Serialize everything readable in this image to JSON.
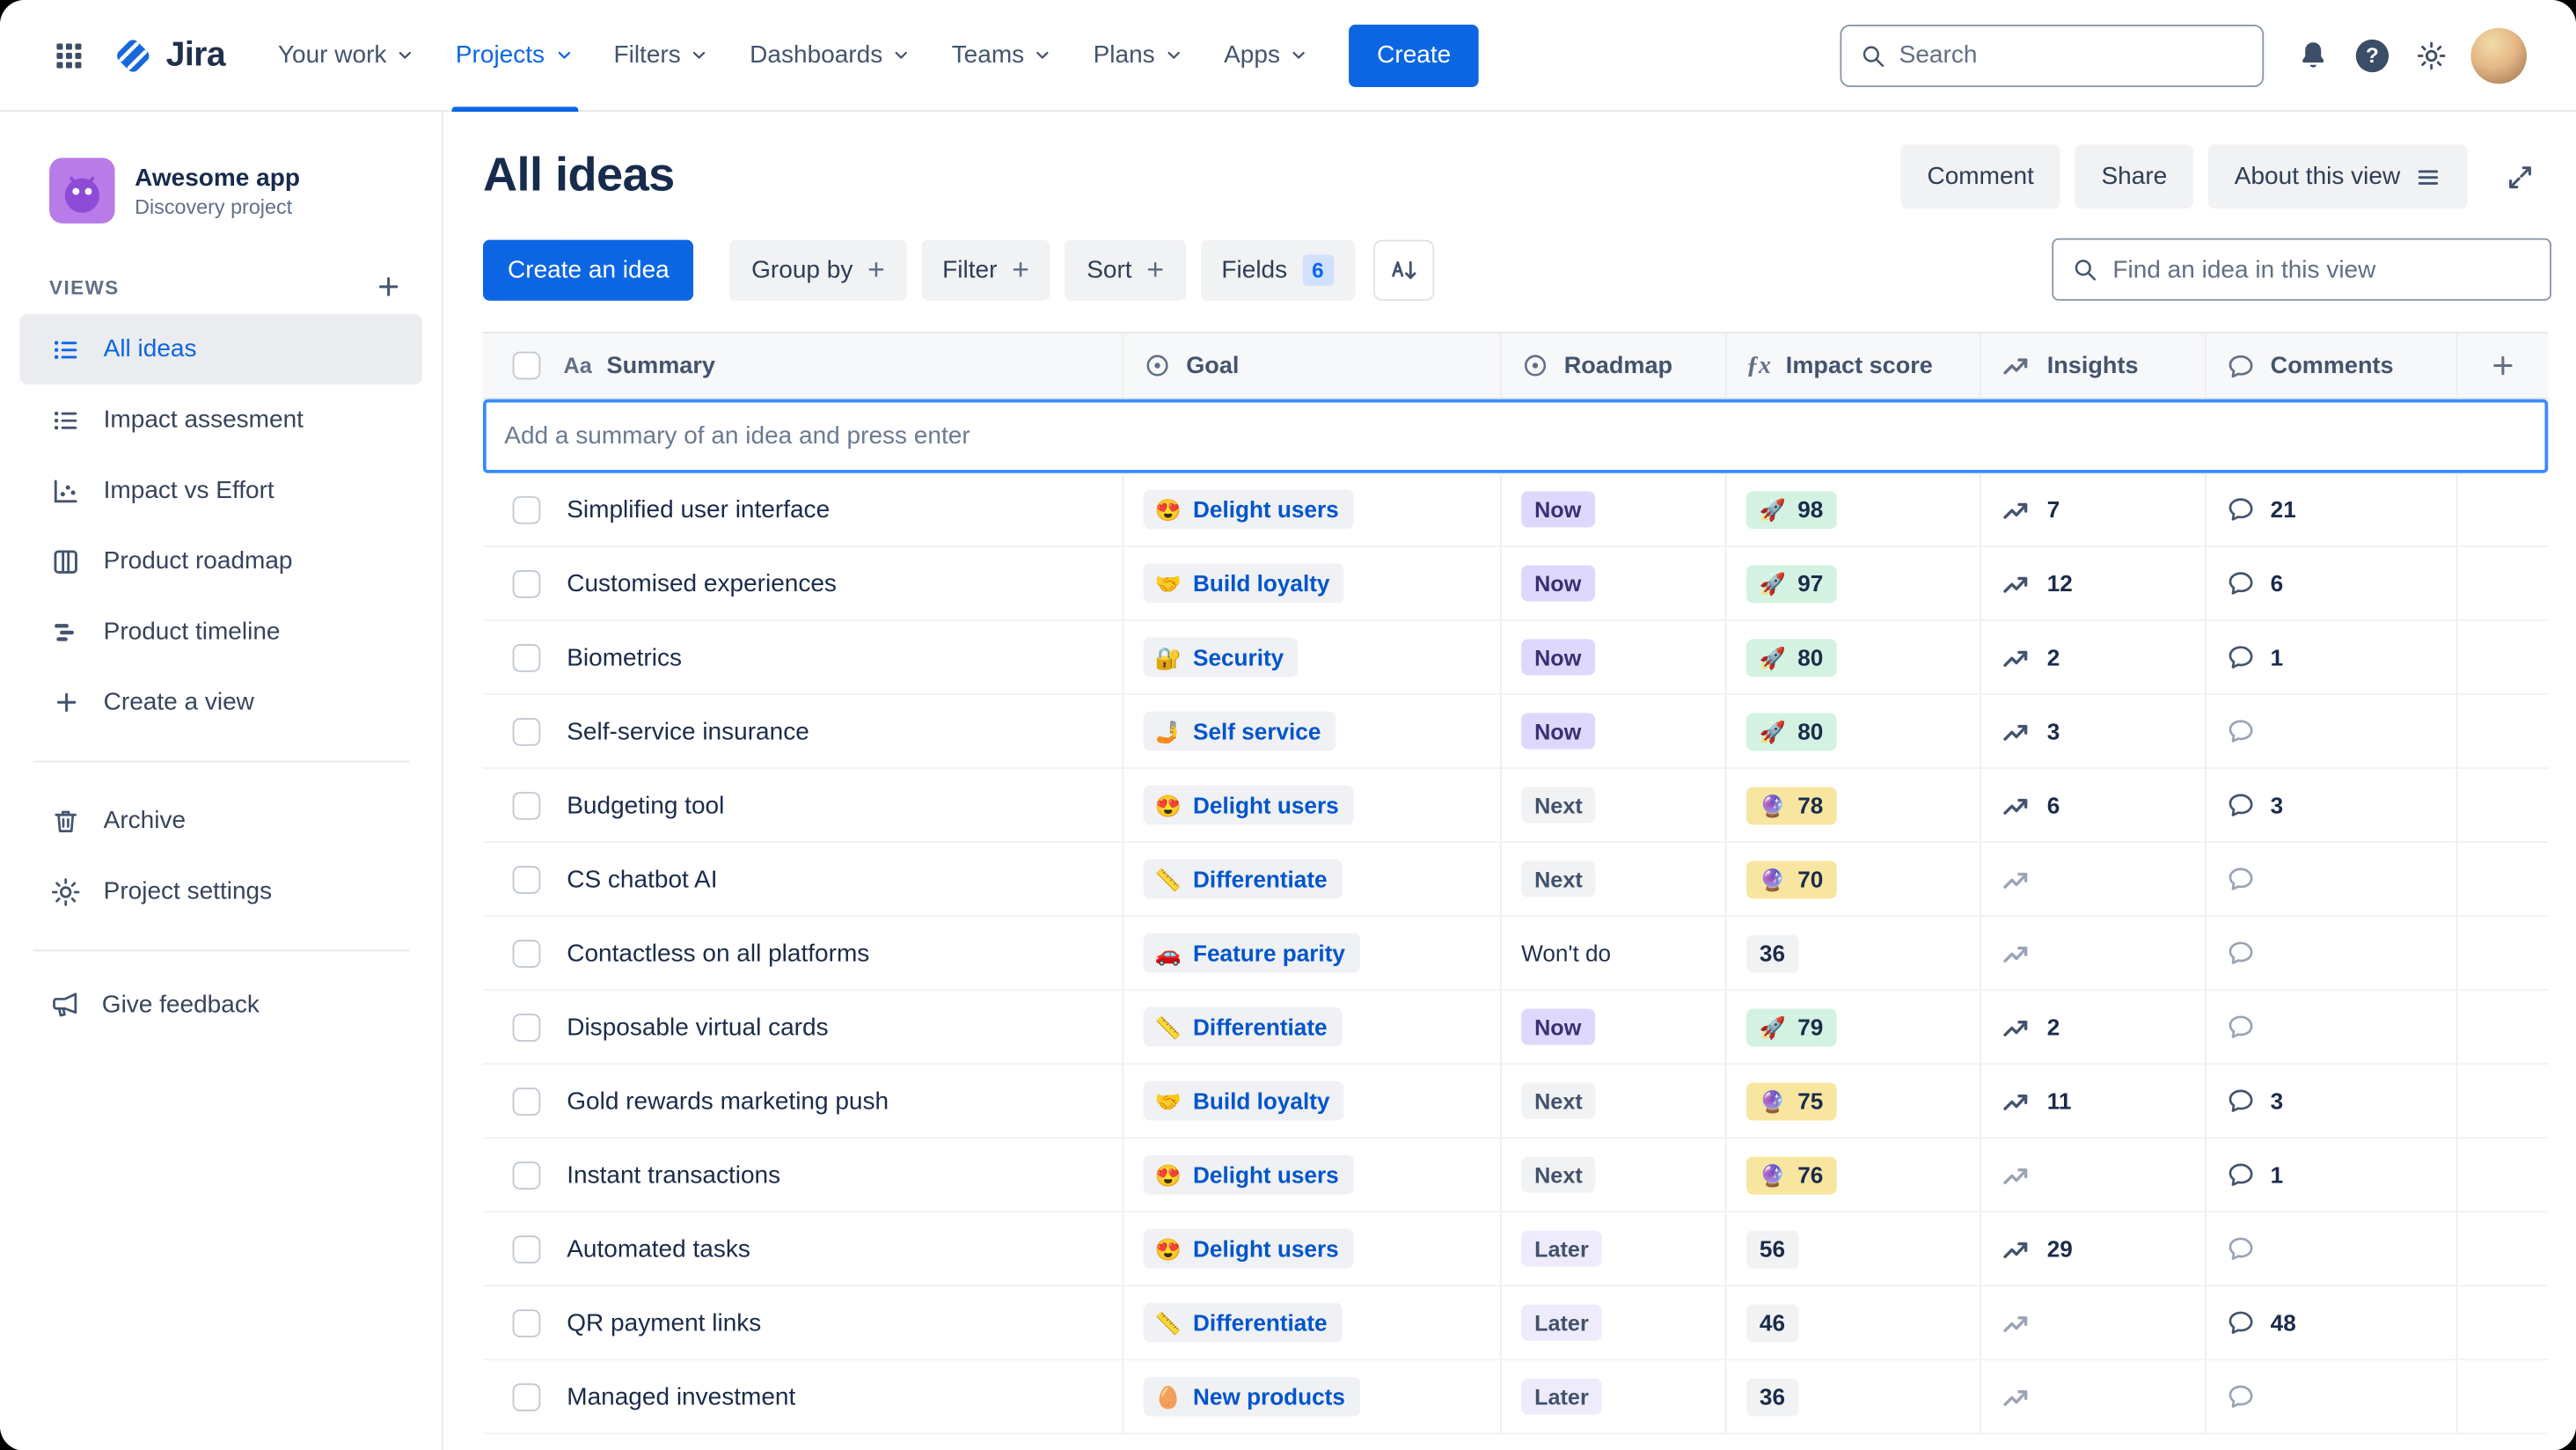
{
  "topnav": {
    "brand": "Jira",
    "items": [
      {
        "label": "Your work"
      },
      {
        "label": "Projects",
        "active": true
      },
      {
        "label": "Filters"
      },
      {
        "label": "Dashboards"
      },
      {
        "label": "Teams"
      },
      {
        "label": "Plans"
      },
      {
        "label": "Apps"
      }
    ],
    "create_button": "Create",
    "search_placeholder": "Search"
  },
  "sidebar": {
    "project": {
      "name": "Awesome app",
      "type": "Discovery project"
    },
    "views_heading": "VIEWS",
    "views": [
      {
        "label": "All ideas",
        "icon": "list-icon",
        "active": true
      },
      {
        "label": "Impact assesment",
        "icon": "list-icon"
      },
      {
        "label": "Impact vs Effort",
        "icon": "scatter-icon"
      },
      {
        "label": "Product roadmap",
        "icon": "board-icon"
      },
      {
        "label": "Product timeline",
        "icon": "timeline-icon"
      },
      {
        "label": "Create a view",
        "icon": "plus-icon"
      }
    ],
    "tools": [
      {
        "label": "Archive",
        "icon": "archive-icon"
      },
      {
        "label": "Project settings",
        "icon": "gear-icon"
      }
    ],
    "feedback_label": "Give feedback"
  },
  "view": {
    "title": "All ideas",
    "actions": {
      "comment": "Comment",
      "share": "Share",
      "about": "About this view"
    },
    "toolbar": {
      "create_idea": "Create an idea",
      "group_by": "Group by",
      "filter": "Filter",
      "sort": "Sort",
      "fields": "Fields",
      "fields_count": "6",
      "find_placeholder": "Find an idea in this view"
    }
  },
  "table": {
    "add_placeholder": "Add a summary of an idea and press enter",
    "columns": [
      {
        "label": "Summary",
        "icon": "text-icon"
      },
      {
        "label": "Goal",
        "icon": "target-icon"
      },
      {
        "label": "Roadmap",
        "icon": "target-icon"
      },
      {
        "label": "Impact score",
        "icon": "formula-icon"
      },
      {
        "label": "Insights",
        "icon": "trend-icon"
      },
      {
        "label": "Comments",
        "icon": "comment-icon"
      }
    ],
    "rows": [
      {
        "summary": "Simplified user interface",
        "goal": {
          "emoji": "😍",
          "label": "Delight users"
        },
        "roadmap": {
          "label": "Now",
          "tone": "purple"
        },
        "impact": {
          "emoji": "🚀",
          "value": "98",
          "tone": "green"
        },
        "insights": "7",
        "comments": "21"
      },
      {
        "summary": "Customised experiences",
        "goal": {
          "emoji": "🤝",
          "label": "Build loyalty"
        },
        "roadmap": {
          "label": "Now",
          "tone": "purple"
        },
        "impact": {
          "emoji": "🚀",
          "value": "97",
          "tone": "green"
        },
        "insights": "12",
        "comments": "6"
      },
      {
        "summary": "Biometrics",
        "goal": {
          "emoji": "🔐",
          "label": "Security"
        },
        "roadmap": {
          "label": "Now",
          "tone": "purple"
        },
        "impact": {
          "emoji": "🚀",
          "value": "80",
          "tone": "green"
        },
        "insights": "2",
        "comments": "1"
      },
      {
        "summary": "Self-service insurance",
        "goal": {
          "emoji": "🤳",
          "label": "Self service"
        },
        "roadmap": {
          "label": "Now",
          "tone": "purple"
        },
        "impact": {
          "emoji": "🚀",
          "value": "80",
          "tone": "green"
        },
        "insights": "3",
        "comments": ""
      },
      {
        "summary": "Budgeting tool",
        "goal": {
          "emoji": "😍",
          "label": "Delight users"
        },
        "roadmap": {
          "label": "Next",
          "tone": "gray"
        },
        "impact": {
          "emoji": "🔮",
          "value": "78",
          "tone": "yellow"
        },
        "insights": "6",
        "comments": "3"
      },
      {
        "summary": "CS chatbot AI",
        "goal": {
          "emoji": "📏",
          "label": "Differentiate"
        },
        "roadmap": {
          "label": "Next",
          "tone": "gray"
        },
        "impact": {
          "emoji": "🔮",
          "value": "70",
          "tone": "yellow"
        },
        "insights": "",
        "comments": ""
      },
      {
        "summary": "Contactless on all platforms",
        "goal": {
          "emoji": "🚗",
          "label": "Feature parity"
        },
        "roadmap": {
          "label": "Won't do",
          "tone": "plain"
        },
        "impact": {
          "emoji": "",
          "value": "36",
          "tone": "gray"
        },
        "insights": "",
        "comments": ""
      },
      {
        "summary": "Disposable virtual cards",
        "goal": {
          "emoji": "📏",
          "label": "Differentiate"
        },
        "roadmap": {
          "label": "Now",
          "tone": "purple"
        },
        "impact": {
          "emoji": "🚀",
          "value": "79",
          "tone": "green"
        },
        "insights": "2",
        "comments": ""
      },
      {
        "summary": "Gold rewards marketing push",
        "goal": {
          "emoji": "🤝",
          "label": "Build loyalty"
        },
        "roadmap": {
          "label": "Next",
          "tone": "gray"
        },
        "impact": {
          "emoji": "🔮",
          "value": "75",
          "tone": "yellow"
        },
        "insights": "11",
        "comments": "3"
      },
      {
        "summary": "Instant transactions",
        "goal": {
          "emoji": "😍",
          "label": "Delight users"
        },
        "roadmap": {
          "label": "Next",
          "tone": "gray"
        },
        "impact": {
          "emoji": "🔮",
          "value": "76",
          "tone": "yellow"
        },
        "insights": "",
        "comments": "1"
      },
      {
        "summary": "Automated tasks",
        "goal": {
          "emoji": "😍",
          "label": "Delight users"
        },
        "roadmap": {
          "label": "Later",
          "tone": "lightpurple"
        },
        "impact": {
          "emoji": "",
          "value": "56",
          "tone": "gray"
        },
        "insights": "29",
        "comments": ""
      },
      {
        "summary": "QR payment links",
        "goal": {
          "emoji": "📏",
          "label": "Differentiate"
        },
        "roadmap": {
          "label": "Later",
          "tone": "lightpurple"
        },
        "impact": {
          "emoji": "",
          "value": "46",
          "tone": "gray"
        },
        "insights": "",
        "comments": "48"
      },
      {
        "summary": "Managed investment",
        "goal": {
          "emoji": "🥚",
          "label": "New products"
        },
        "roadmap": {
          "label": "Later",
          "tone": "lightpurple"
        },
        "impact": {
          "emoji": "",
          "value": "36",
          "tone": "gray"
        },
        "insights": "",
        "comments": ""
      }
    ],
    "colors": {
      "accent_blue": "#0C66E4",
      "roadmap_now_bg": "#DFD8FD",
      "roadmap_next_bg": "#F1F2F4",
      "roadmap_later_bg": "#EEEBFC",
      "impact_high_bg": "#D4F2E1",
      "impact_mid_bg": "#F8E6A0",
      "impact_low_bg": "#F1F2F4",
      "goal_chip_text": "#0055CC"
    }
  }
}
